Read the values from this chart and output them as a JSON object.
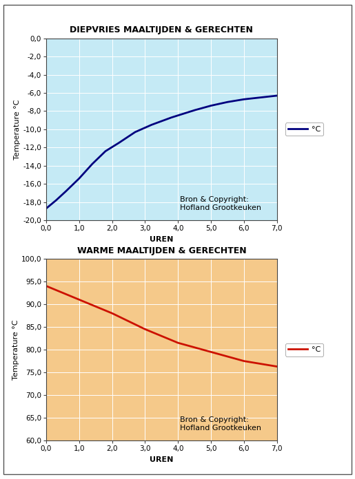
{
  "chart1": {
    "title": "DIEPVRIES MAALTIJDEN & GERECHTEN",
    "xlabel": "UREN",
    "ylabel": "Temperature °C",
    "xlim": [
      0,
      7
    ],
    "ylim": [
      -20,
      0
    ],
    "yticks": [
      0,
      -2,
      -4,
      -6,
      -8,
      -10,
      -12,
      -14,
      -16,
      -18,
      -20
    ],
    "xticks": [
      0,
      1,
      2,
      3,
      4,
      5,
      6,
      7
    ],
    "bg_color": "#c5eaf5",
    "line_color": "#00007f",
    "line_width": 2.0,
    "legend_label": "°C",
    "annotation": "Bron & Copyright:\nHofland Grootkeuken",
    "x_data": [
      0,
      0.3,
      0.6,
      1.0,
      1.4,
      1.8,
      2.2,
      2.7,
      3.2,
      3.8,
      4.5,
      5.0,
      5.5,
      6.0,
      6.5,
      7.0
    ],
    "y_data": [
      -18.7,
      -17.8,
      -16.8,
      -15.4,
      -13.8,
      -12.4,
      -11.5,
      -10.3,
      -9.5,
      -8.7,
      -7.9,
      -7.4,
      -7.0,
      -6.7,
      -6.5,
      -6.3
    ]
  },
  "chart2": {
    "title": "WARME MAALTIJDEN & GERECHTEN",
    "xlabel": "UREN",
    "ylabel": "Temperature °C",
    "xlim": [
      0,
      7
    ],
    "ylim": [
      60,
      100
    ],
    "yticks": [
      60,
      65,
      70,
      75,
      80,
      85,
      90,
      95,
      100
    ],
    "xticks": [
      0,
      1,
      2,
      3,
      4,
      5,
      6,
      7
    ],
    "bg_color": "#f5c98a",
    "line_color": "#cc1100",
    "line_width": 2.0,
    "legend_label": "°C",
    "annotation": "Bron & Copyright:\nHofland Grootkeuken",
    "x_data": [
      0,
      1.0,
      2.0,
      3.0,
      4.0,
      5.0,
      6.0,
      7.0
    ],
    "y_data": [
      94.0,
      91.0,
      88.0,
      84.5,
      81.5,
      79.5,
      77.5,
      76.3
    ]
  },
  "fig_bg": "#ffffff",
  "title_fontsize": 9,
  "axis_label_fontsize": 8,
  "tick_fontsize": 7.5,
  "legend_fontsize": 8,
  "annotation_fontsize": 8
}
